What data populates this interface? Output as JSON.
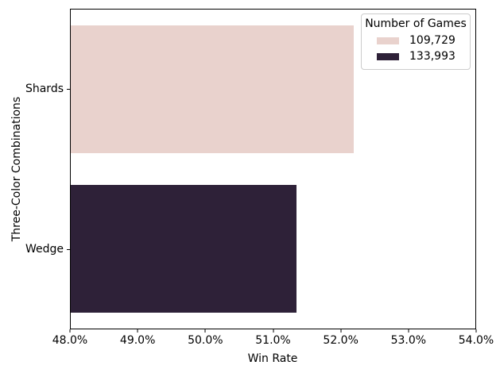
{
  "chart_data": {
    "type": "bar",
    "orientation": "horizontal",
    "title": "",
    "xlabel": "Win Rate",
    "ylabel": "Three-Color Combinations",
    "categories": [
      "Shards",
      "Wedge"
    ],
    "values": [
      52.2,
      51.35
    ],
    "value_unit": "%",
    "bar_colors": [
      "#e9d2cd",
      "#2e2138"
    ],
    "xlim": [
      48.0,
      54.0
    ],
    "xtick_values": [
      48.0,
      49.0,
      50.0,
      51.0,
      52.0,
      53.0,
      54.0
    ],
    "xticks": [
      "48.0%",
      "49.0%",
      "50.0%",
      "51.0%",
      "52.0%",
      "53.0%",
      "54.0%"
    ],
    "grid": false,
    "legend": {
      "title": "Number of Games",
      "position": "upper right",
      "entries": [
        {
          "label": "109,729",
          "color": "#e9d2cd"
        },
        {
          "label": "133,993",
          "color": "#2e2138"
        }
      ]
    }
  }
}
